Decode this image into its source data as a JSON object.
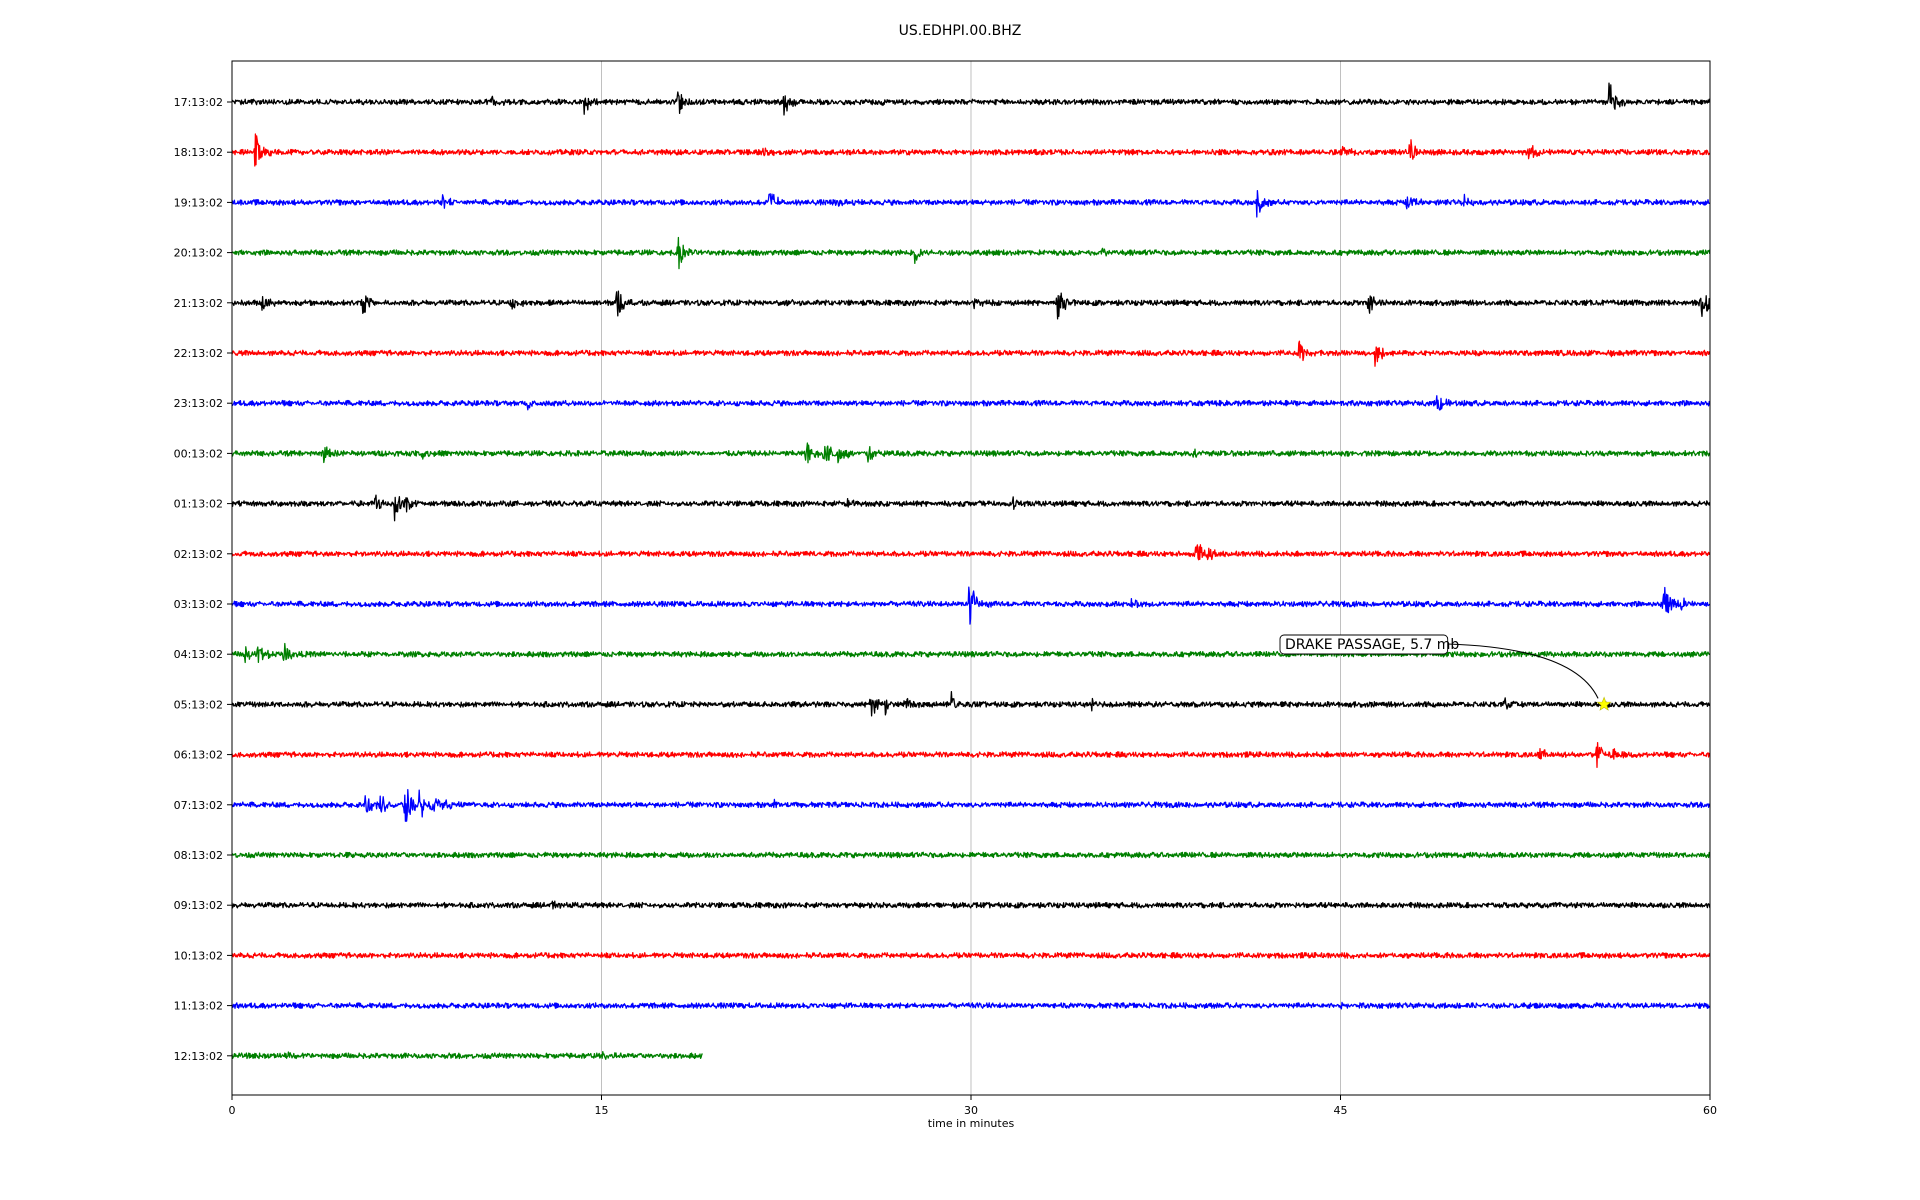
{
  "chart_data": {
    "type": "line",
    "title": "US.EDHPI.00.BHZ",
    "xlabel": "time in minutes",
    "ylabel": "",
    "xlim": [
      0,
      60
    ],
    "x_ticks": [
      0,
      15,
      30,
      45,
      60
    ],
    "x_tick_labels": [
      "0",
      "15",
      "30",
      "45",
      "60"
    ],
    "grid": "vertical",
    "trace_colors": [
      "#000000",
      "#ff0000",
      "#0000ff",
      "#008000"
    ],
    "noise_amplitude": 0.08,
    "rows": [
      {
        "label": "17:13:02",
        "color": "#000000",
        "end_minute": 60,
        "events": [
          {
            "t": 10.5,
            "amp": 0.3
          },
          {
            "t": 14.3,
            "amp": 0.45
          },
          {
            "t": 18.1,
            "amp": 0.5
          },
          {
            "t": 22.4,
            "amp": 0.45
          },
          {
            "t": 26.1,
            "amp": 0.2
          },
          {
            "t": 55.9,
            "amp": 0.85
          }
        ]
      },
      {
        "label": "18:13:02",
        "color": "#ff0000",
        "end_minute": 60,
        "events": [
          {
            "t": 0.9,
            "amp": 0.8
          },
          {
            "t": 21.5,
            "amp": 0.2
          },
          {
            "t": 45.0,
            "amp": 0.3
          },
          {
            "t": 47.8,
            "amp": 0.55
          },
          {
            "t": 52.6,
            "amp": 0.4
          }
        ]
      },
      {
        "label": "19:13:02",
        "color": "#0000ff",
        "end_minute": 60,
        "events": [
          {
            "t": 8.5,
            "amp": 0.3
          },
          {
            "t": 21.8,
            "amp": 0.5
          },
          {
            "t": 24.5,
            "amp": 0.2
          },
          {
            "t": 41.6,
            "amp": 0.55
          },
          {
            "t": 47.7,
            "amp": 0.6
          },
          {
            "t": 50.0,
            "amp": 0.2
          }
        ]
      },
      {
        "label": "20:13:02",
        "color": "#008000",
        "end_minute": 60,
        "events": [
          {
            "t": 18.1,
            "amp": 0.6
          },
          {
            "t": 27.7,
            "amp": 0.4
          },
          {
            "t": 35.3,
            "amp": 0.15
          }
        ]
      },
      {
        "label": "21:13:02",
        "color": "#000000",
        "end_minute": 60,
        "events": [
          {
            "t": 1.2,
            "amp": 0.35
          },
          {
            "t": 5.3,
            "amp": 0.45
          },
          {
            "t": 11.3,
            "amp": 0.35
          },
          {
            "t": 15.6,
            "amp": 0.6
          },
          {
            "t": 22.5,
            "amp": 0.2
          },
          {
            "t": 30.1,
            "amp": 0.2
          },
          {
            "t": 33.5,
            "amp": 0.55
          },
          {
            "t": 46.1,
            "amp": 0.6
          },
          {
            "t": 59.6,
            "amp": 0.85
          }
        ]
      },
      {
        "label": "22:13:02",
        "color": "#ff0000",
        "end_minute": 60,
        "events": [
          {
            "t": 43.3,
            "amp": 0.5
          },
          {
            "t": 46.4,
            "amp": 0.5
          },
          {
            "t": 56.0,
            "amp": 0.15
          }
        ]
      },
      {
        "label": "23:13:02",
        "color": "#0000ff",
        "end_minute": 60,
        "events": [
          {
            "t": 12.0,
            "amp": 0.2
          },
          {
            "t": 48.9,
            "amp": 0.45
          }
        ]
      },
      {
        "label": "00:13:02",
        "color": "#008000",
        "end_minute": 60,
        "events": [
          {
            "t": 3.7,
            "amp": 0.35
          },
          {
            "t": 7.7,
            "amp": 0.25
          },
          {
            "t": 23.3,
            "amp": 0.55
          },
          {
            "t": 24.0,
            "amp": 0.6
          },
          {
            "t": 24.6,
            "amp": 0.5
          },
          {
            "t": 25.8,
            "amp": 0.35
          },
          {
            "t": 39.0,
            "amp": 0.15
          }
        ]
      },
      {
        "label": "01:13:02",
        "color": "#000000",
        "end_minute": 60,
        "events": [
          {
            "t": 5.8,
            "amp": 0.35
          },
          {
            "t": 6.6,
            "amp": 0.6
          },
          {
            "t": 7.0,
            "amp": 0.45
          },
          {
            "t": 24.9,
            "amp": 0.2
          },
          {
            "t": 31.7,
            "amp": 0.25
          }
        ]
      },
      {
        "label": "02:13:02",
        "color": "#ff0000",
        "end_minute": 60,
        "events": [
          {
            "t": 39.1,
            "amp": 0.55
          },
          {
            "t": 39.6,
            "amp": 0.3
          }
        ]
      },
      {
        "label": "03:13:02",
        "color": "#0000ff",
        "end_minute": 60,
        "events": [
          {
            "t": 29.9,
            "amp": 0.9
          },
          {
            "t": 36.5,
            "amp": 0.15
          },
          {
            "t": 58.1,
            "amp": 0.8
          },
          {
            "t": 58.8,
            "amp": 0.3
          }
        ]
      },
      {
        "label": "04:13:02",
        "color": "#008000",
        "end_minute": 60,
        "events": [
          {
            "t": 0.5,
            "amp": 0.35
          },
          {
            "t": 1.0,
            "amp": 0.55
          },
          {
            "t": 2.1,
            "amp": 0.35
          }
        ]
      },
      {
        "label": "05:13:02",
        "color": "#000000",
        "end_minute": 60,
        "events": [
          {
            "t": 25.9,
            "amp": 0.45
          },
          {
            "t": 26.5,
            "amp": 0.35
          },
          {
            "t": 27.3,
            "amp": 0.35
          },
          {
            "t": 29.2,
            "amp": 0.5
          },
          {
            "t": 34.9,
            "amp": 0.2
          },
          {
            "t": 51.6,
            "amp": 0.2
          }
        ]
      },
      {
        "label": "06:13:02",
        "color": "#ff0000",
        "end_minute": 60,
        "events": [
          {
            "t": 53.1,
            "amp": 0.3
          },
          {
            "t": 55.4,
            "amp": 0.5
          },
          {
            "t": 56.0,
            "amp": 0.3
          }
        ]
      },
      {
        "label": "07:13:02",
        "color": "#0000ff",
        "end_minute": 60,
        "events": [
          {
            "t": 5.4,
            "amp": 0.45
          },
          {
            "t": 6.0,
            "amp": 0.4
          },
          {
            "t": 7.0,
            "amp": 1.0
          },
          {
            "t": 7.6,
            "amp": 0.6
          },
          {
            "t": 8.1,
            "amp": 0.55
          },
          {
            "t": 8.7,
            "amp": 0.3
          },
          {
            "t": 22.0,
            "amp": 0.15
          }
        ]
      },
      {
        "label": "08:13:02",
        "color": "#008000",
        "end_minute": 60,
        "events": [
          {
            "t": 4.0,
            "amp": 0.1
          }
        ]
      },
      {
        "label": "09:13:02",
        "color": "#000000",
        "end_minute": 60,
        "events": [
          {
            "t": 13.0,
            "amp": 0.1
          }
        ]
      },
      {
        "label": "10:13:02",
        "color": "#ff0000",
        "end_minute": 60,
        "events": [
          {
            "t": 45.5,
            "amp": 0.1
          }
        ]
      },
      {
        "label": "11:13:02",
        "color": "#0000ff",
        "end_minute": 60,
        "events": [
          {
            "t": 44.8,
            "amp": 0.12
          }
        ]
      },
      {
        "label": "12:13:02",
        "color": "#008000",
        "end_minute": 19.1,
        "events": [
          {
            "t": 2.3,
            "amp": 0.12
          },
          {
            "t": 15.0,
            "amp": 0.1
          }
        ]
      }
    ],
    "annotation": {
      "text": "DRAKE PASSAGE, 5.7 mb",
      "row_label": "05:13:02",
      "t": 55.7,
      "marker": "star",
      "marker_color": "#ffff00"
    }
  }
}
